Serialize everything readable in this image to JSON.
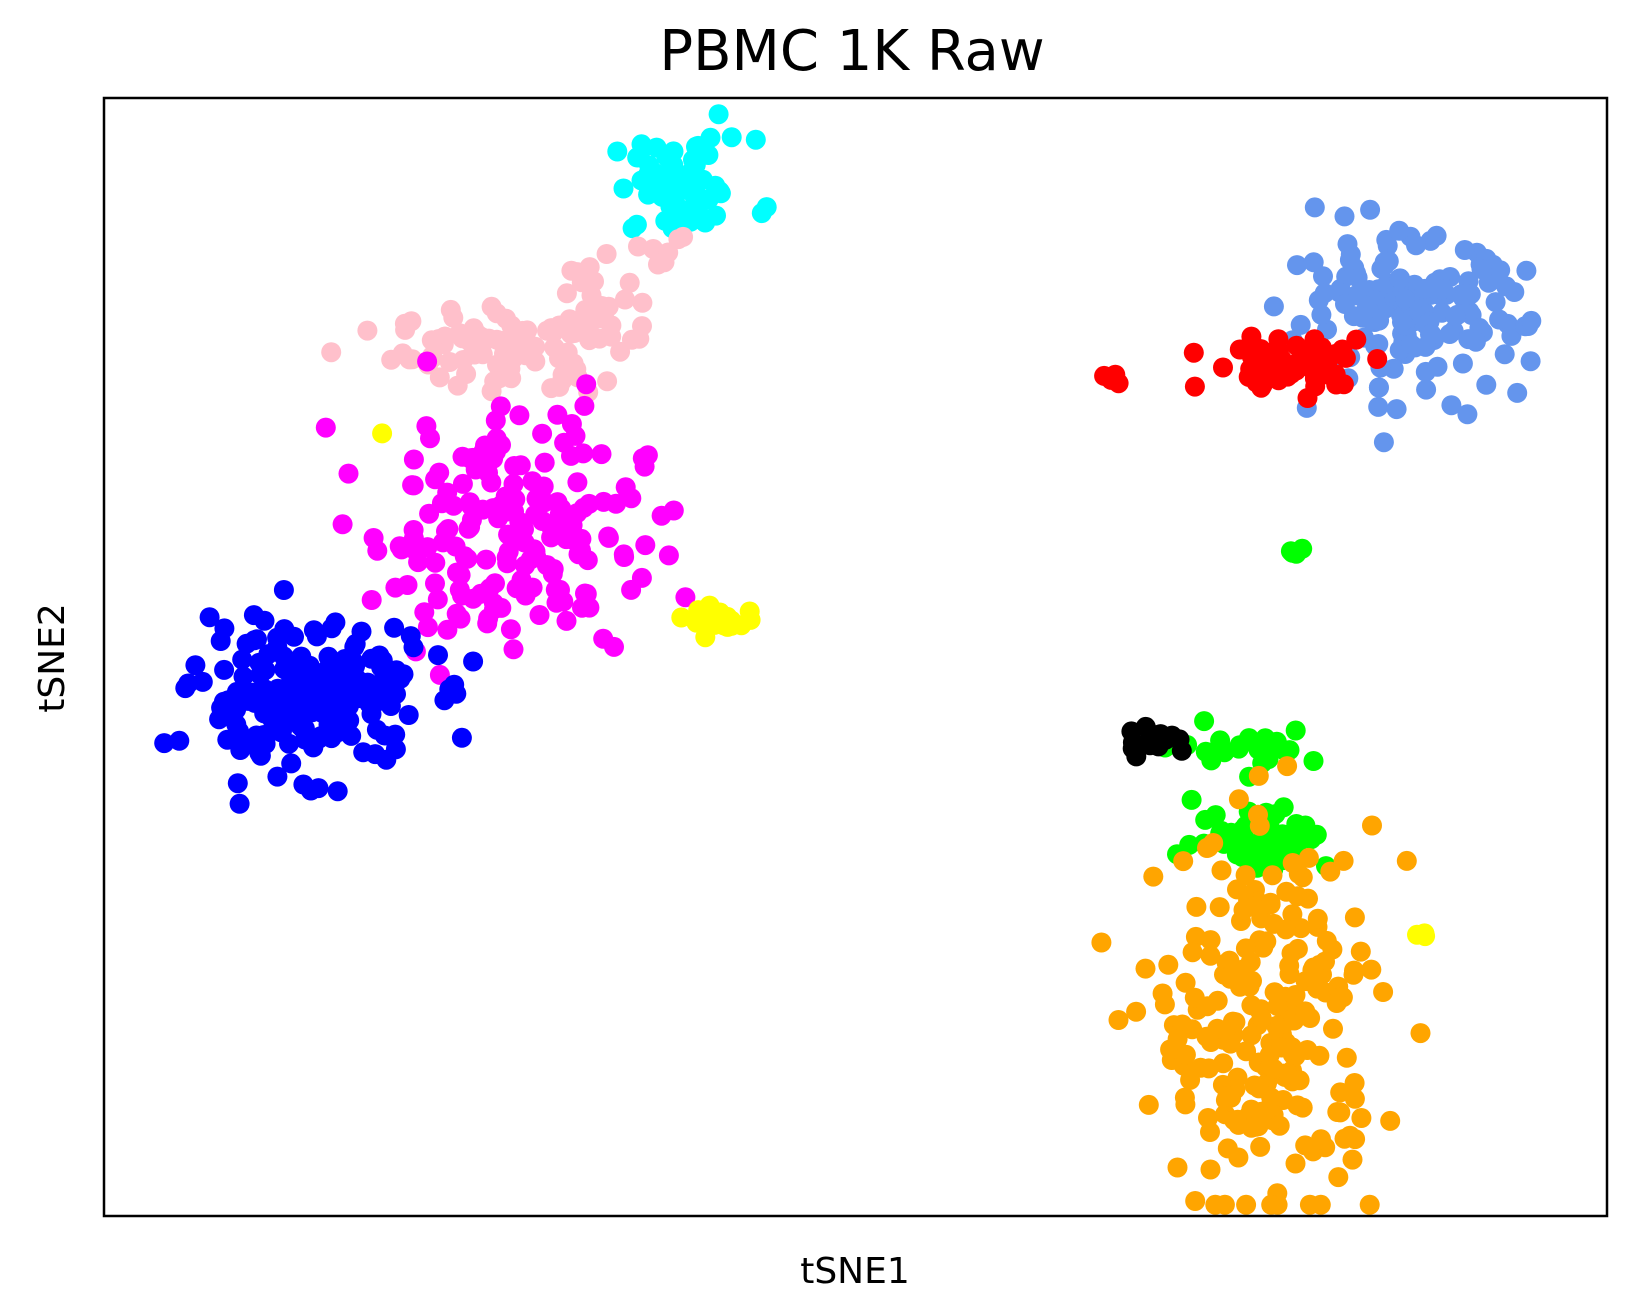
{
  "chart_data": {
    "type": "scatter",
    "title": "PBMC 1K Raw",
    "xlabel": "tSNE1",
    "ylabel": "tSNE2",
    "xlim": [
      0,
      100
    ],
    "ylim": [
      0,
      100
    ],
    "x_ticks_shown": false,
    "y_ticks_shown": false,
    "grid": false,
    "legend": "none",
    "series": [
      {
        "color": "#00ffff",
        "clusters": [
          [
            38.5,
            92.0,
            2.4,
            2.2,
            65
          ]
        ]
      },
      {
        "color": "#ffc0cb",
        "clusters": [
          [
            26.5,
            77.5,
            3.5,
            1.8,
            85
          ],
          [
            33.0,
            81.5,
            1.8,
            2.6,
            30
          ],
          [
            37.5,
            86.5,
            1.2,
            1.0,
            6
          ]
        ]
      },
      {
        "color": "#ff00ff",
        "clusters": [
          [
            27.0,
            61.5,
            4.5,
            5.5,
            190
          ]
        ]
      },
      {
        "color": "#0000ff",
        "clusters": [
          [
            13.5,
            46.5,
            3.8,
            3.2,
            200
          ]
        ]
      },
      {
        "color": "#ffff00",
        "clusters": [
          [
            41.2,
            53.3,
            1.2,
            0.6,
            25
          ],
          [
            18.5,
            70.0,
            0.0,
            0.0,
            1
          ],
          [
            88.0,
            25.0,
            0.3,
            0.2,
            3
          ]
        ]
      },
      {
        "color": "#6495ed",
        "clusters": [
          [
            86.5,
            80.5,
            4.0,
            3.4,
            160
          ]
        ]
      },
      {
        "color": "#ff0000",
        "clusters": [
          [
            79.0,
            76.3,
            2.7,
            1.2,
            70
          ],
          [
            67.3,
            74.8,
            0.4,
            0.4,
            6
          ]
        ]
      },
      {
        "color": "#00ff00",
        "clusters": [
          [
            77.0,
            34.0,
            2.2,
            1.5,
            60
          ],
          [
            76.0,
            42.0,
            2.5,
            0.8,
            25
          ],
          [
            79.3,
            59.5,
            0.2,
            0.2,
            4
          ]
        ]
      },
      {
        "color": "#000000",
        "clusters": [
          [
            70.0,
            42.5,
            1.0,
            0.8,
            18
          ]
        ]
      },
      {
        "color": "#ffa500",
        "clusters": [
          [
            77.5,
            17.0,
            3.7,
            8.5,
            240
          ]
        ]
      }
    ]
  }
}
